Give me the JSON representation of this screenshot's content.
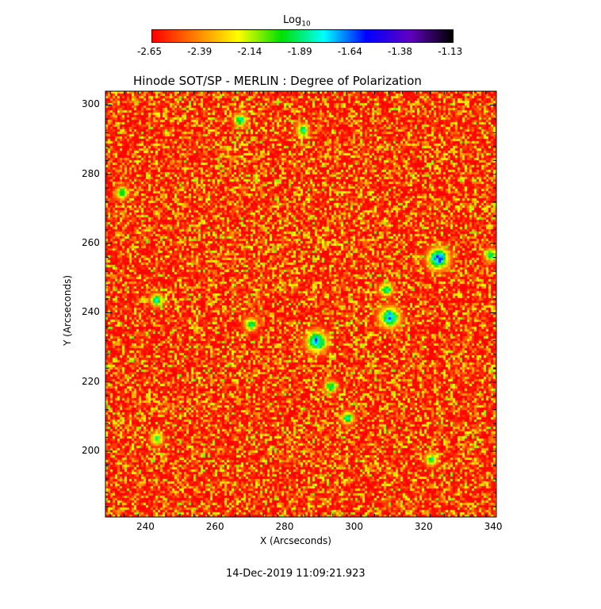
{
  "chart_data": {
    "type": "heatmap",
    "title": "Hinode SOT/SP - MERLIN : Degree of Polarization",
    "xlabel": "X (Arcseconds)",
    "ylabel": "Y (Arcseconds)",
    "xlim": [
      228.6,
      341
    ],
    "ylim": [
      181,
      304
    ],
    "xticks": [
      240,
      260,
      280,
      300,
      320,
      340
    ],
    "yticks": [
      200,
      220,
      240,
      260,
      280,
      300
    ],
    "colorbar": {
      "label": "Log",
      "label_sub": "10",
      "range": [
        -2.65,
        -1.13
      ],
      "ticks": [
        "-2.65",
        "-2.39",
        "-2.14",
        "-1.89",
        "-1.64",
        "-1.38",
        "-1.13"
      ],
      "colormap": [
        "#ff0000",
        "#ff8000",
        "#ffff00",
        "#00e000",
        "#00ffff",
        "#0000ff",
        "#6000c0",
        "#000000"
      ]
    },
    "peaks": [
      {
        "x": 289,
        "y": 232,
        "value": -1.5
      },
      {
        "x": 324,
        "y": 256,
        "value": -1.4
      },
      {
        "x": 310,
        "y": 239,
        "value": -1.55
      },
      {
        "x": 309,
        "y": 247,
        "value": -1.7
      },
      {
        "x": 243,
        "y": 244,
        "value": -1.7
      },
      {
        "x": 270,
        "y": 237,
        "value": -1.7
      },
      {
        "x": 298,
        "y": 210,
        "value": -1.7
      },
      {
        "x": 293,
        "y": 219,
        "value": -1.75
      },
      {
        "x": 267,
        "y": 296,
        "value": -1.7
      },
      {
        "x": 285,
        "y": 293,
        "value": -1.75
      },
      {
        "x": 233,
        "y": 275,
        "value": -1.8
      },
      {
        "x": 243,
        "y": 204,
        "value": -1.8
      },
      {
        "x": 322,
        "y": 198,
        "value": -1.8
      },
      {
        "x": 339,
        "y": 257,
        "value": -1.75
      }
    ]
  },
  "timestamp": "14-Dec-2019 11:09:21.923"
}
